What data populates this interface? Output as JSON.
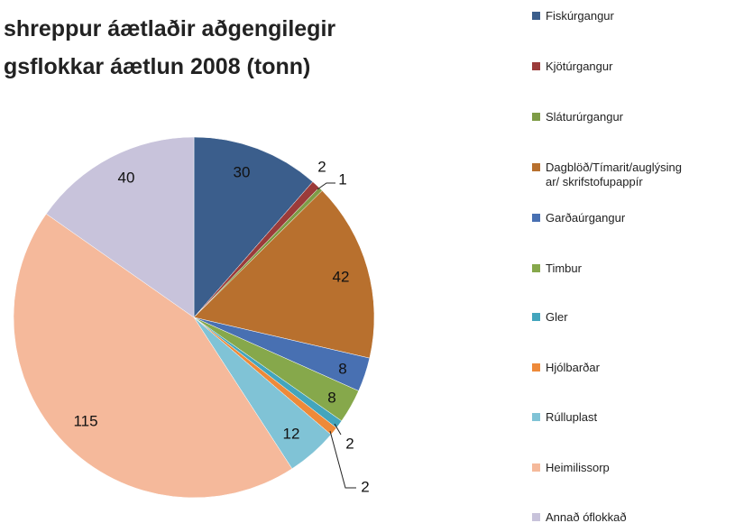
{
  "chart_data": {
    "type": "pie",
    "title_lines": [
      "shreppur áætlaðir aðgengilegir",
      "gsflokkar áætlun 2008 (tonn)"
    ],
    "categories": [
      "Fiskúrgangur",
      "Kjötúrgangur",
      "Sláturúrgangur",
      "Dagblöð/Tímarit/auglýsingar/ skrifstofupappír",
      "Garðaúrgangur",
      "Timbur",
      "Gler",
      "Hjólbarðar",
      "Rúlluplast",
      "Heimilissorp",
      "Annað óflokkað"
    ],
    "values": [
      30,
      2,
      1,
      42,
      8,
      8,
      2,
      2,
      12,
      115,
      40
    ],
    "colors": [
      "#3b5e8c",
      "#9b3b3a",
      "#7e9c46",
      "#b8702e",
      "#4870b2",
      "#86a84b",
      "#43a5bd",
      "#ee8a3a",
      "#80c3d6",
      "#f5b99b",
      "#c8c3db"
    ],
    "legend": "right"
  }
}
